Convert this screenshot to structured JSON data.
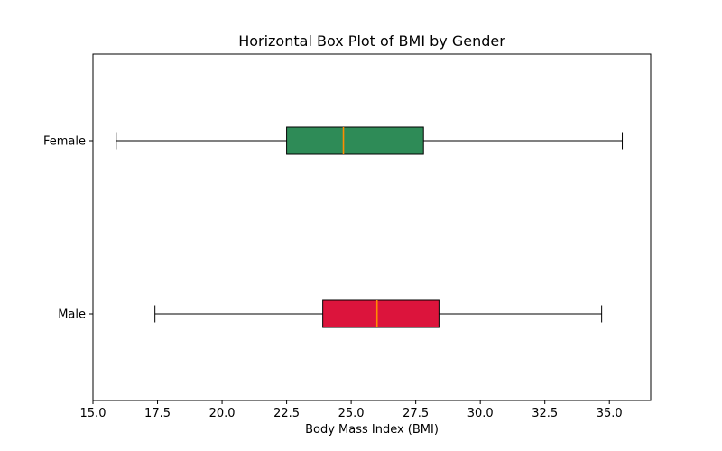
{
  "chart_data": {
    "type": "boxplot",
    "orientation": "horizontal",
    "title": "Horizontal Box Plot of BMI by Gender",
    "xlabel": "Body Mass Index (BMI)",
    "ylabel": "",
    "categories": [
      "Female",
      "Male"
    ],
    "series": [
      {
        "name": "Female",
        "whisker_low": 15.9,
        "q1": 22.5,
        "median": 24.7,
        "q3": 27.8,
        "whisker_high": 35.5,
        "box_color": "#2e8b57"
      },
      {
        "name": "Male",
        "whisker_low": 17.4,
        "q1": 23.9,
        "median": 26.0,
        "q3": 28.4,
        "whisker_high": 34.7,
        "box_color": "#dc143c"
      }
    ],
    "median_color": "#ff8c00",
    "edge_color": "#000000",
    "background_color": "#ffffff",
    "xlim": [
      15.0,
      36.6
    ],
    "x_ticks": [
      15.0,
      17.5,
      20.0,
      22.5,
      25.0,
      27.5,
      30.0,
      32.5,
      35.0
    ],
    "x_tick_labels": [
      "15.0",
      "17.5",
      "20.0",
      "22.5",
      "25.0",
      "27.5",
      "30.0",
      "32.5",
      "35.0"
    ],
    "grid": false,
    "legend": "none"
  }
}
